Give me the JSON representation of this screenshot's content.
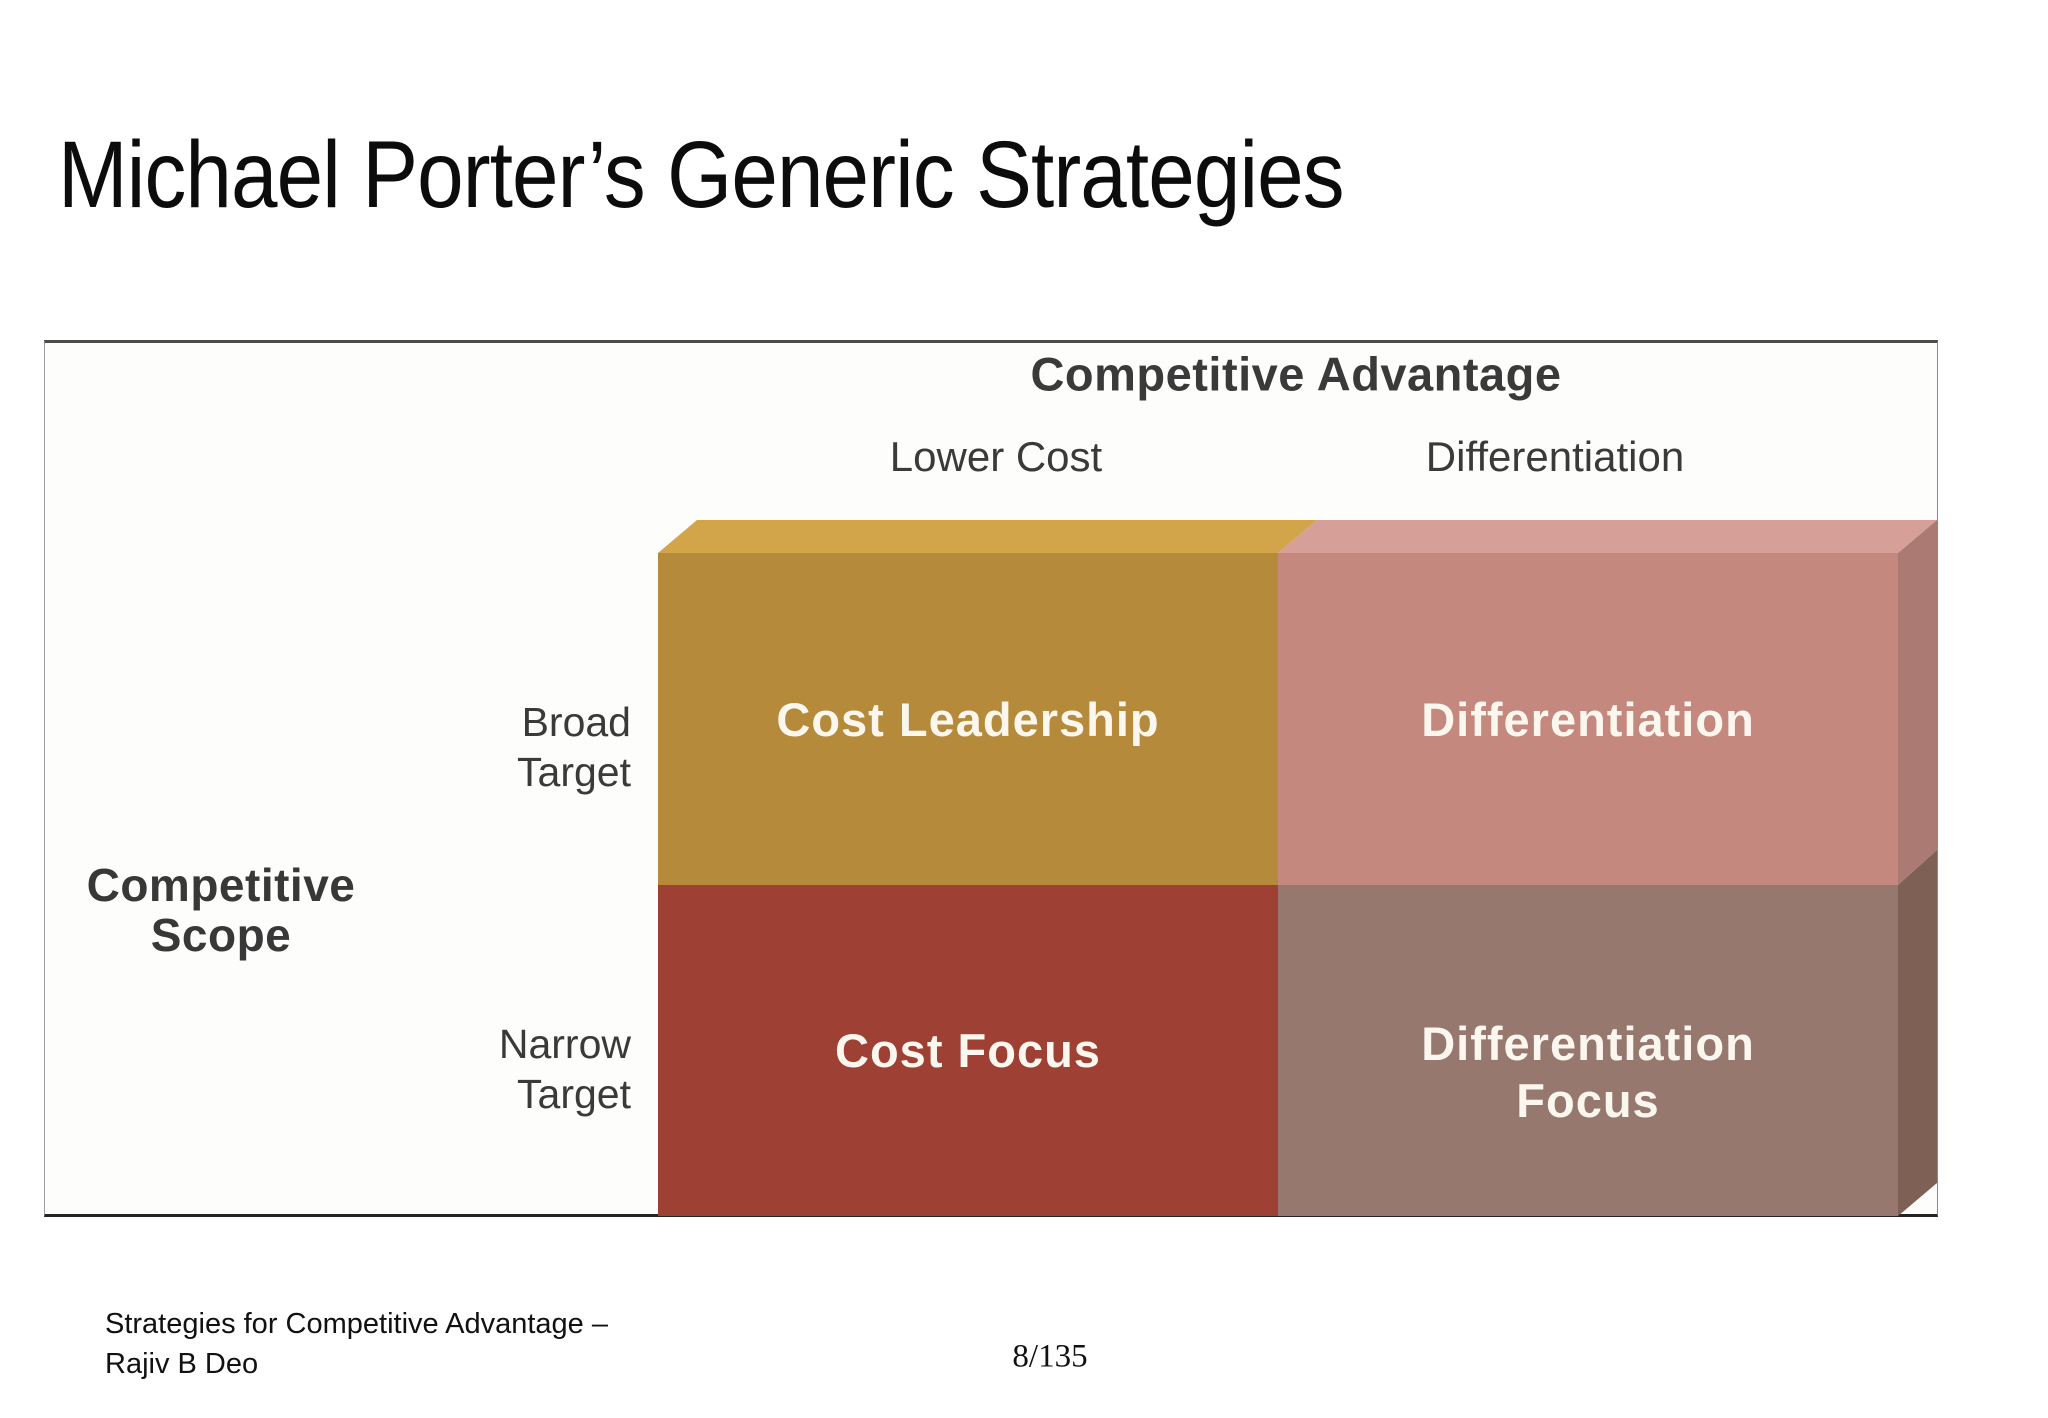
{
  "title": "Michael Porter’s Generic Strategies",
  "diagram": {
    "header": "Competitive Advantage",
    "columns": {
      "left": "Lower Cost",
      "right": "Differentiation"
    },
    "rows": {
      "axis_title_line1": "Competitive",
      "axis_title_line2": "Scope",
      "broad_line1": "Broad",
      "broad_line2": "Target",
      "narrow_line1": "Narrow",
      "narrow_line2": "Target"
    },
    "quadrants": {
      "top_left": "Cost Leadership",
      "top_right": "Differentiation",
      "bottom_left": "Cost Focus",
      "bottom_right_line1": "Differentiation",
      "bottom_right_line2": "Focus"
    },
    "colors": {
      "gold_front": "#b58b3b",
      "gold_top": "#d2a54b",
      "rose_front": "#c5887f",
      "rose_top": "#d69f97",
      "rose_side": "#ab7b73",
      "red_front": "#9e4033",
      "mauve_front": "#97786f",
      "mauve_side": "#7e6055",
      "quadrant_text": "#fbf7ef",
      "axis_text": "#3a3a3a"
    }
  },
  "footer": {
    "credit_line1": "Strategies for Competitive Advantage –",
    "credit_line2": "Rajiv B Deo",
    "page": "8/135"
  }
}
